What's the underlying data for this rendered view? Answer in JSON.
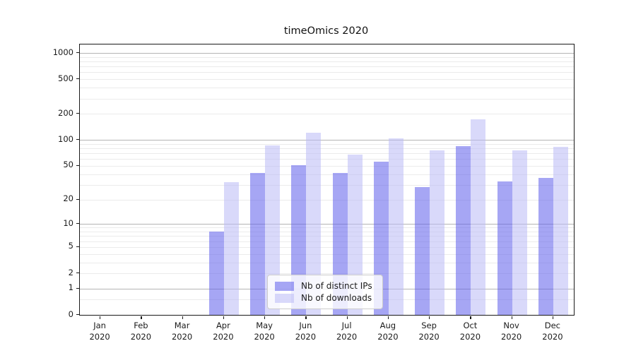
{
  "title": "timeOmics 2020",
  "legend": {
    "items": [
      {
        "label": "Nb of distinct IPs",
        "color": "rgba(92,92,235,0.55)"
      },
      {
        "label": "Nb of downloads",
        "color": "rgba(186,186,246,0.55)"
      }
    ]
  },
  "colors": {
    "distinct_ips_bar": "rgba(92,92,235,0.55)",
    "downloads_bar": "rgba(186,186,246,0.55)",
    "major_grid": "#b4b4b4",
    "minor_grid": "#ebebeb",
    "axis": "#1a1a1a"
  },
  "chart_data": {
    "type": "bar",
    "title": "timeOmics 2020",
    "xlabel": "",
    "ylabel": "",
    "categories": [
      "Jan 2020",
      "Feb 2020",
      "Mar 2020",
      "Apr 2020",
      "May 2020",
      "Jun 2020",
      "Jul 2020",
      "Aug 2020",
      "Sep 2020",
      "Oct 2020",
      "Nov 2020",
      "Dec 2020"
    ],
    "series": [
      {
        "name": "Nb of distinct IPs",
        "values": [
          0,
          0,
          0,
          8,
          41,
          51,
          41,
          56,
          28,
          84,
          33,
          36
        ]
      },
      {
        "name": "Nb of downloads",
        "values": [
          0,
          0,
          0,
          32,
          86,
          122,
          67,
          105,
          76,
          172,
          76,
          83
        ]
      }
    ],
    "yscale": "symlog-ln(1+v)",
    "yticks": [
      0,
      1,
      2,
      5,
      10,
      20,
      50,
      100,
      200,
      500,
      1000
    ],
    "ylim": [
      0,
      1250
    ],
    "grid": true,
    "legend_position": "lower center"
  }
}
